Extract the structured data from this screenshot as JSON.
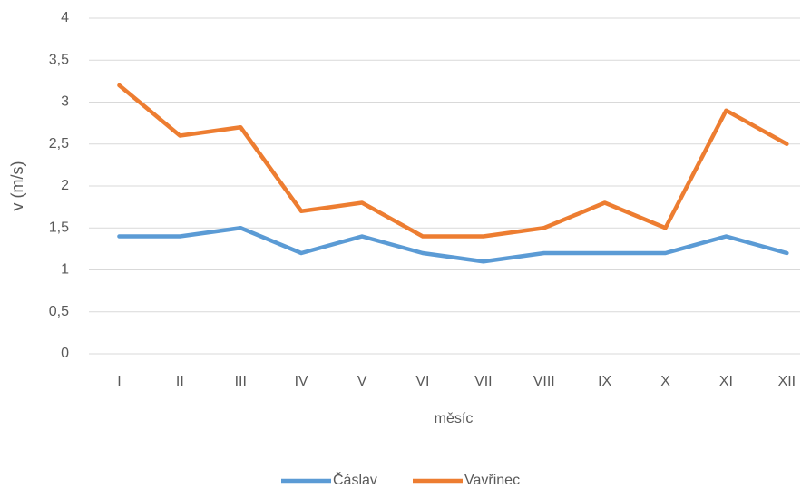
{
  "chart_data": {
    "type": "line",
    "x_label": "měsíc",
    "y_label": "v (m/s)",
    "categories": [
      "I",
      "II",
      "III",
      "IV",
      "V",
      "VI",
      "VII",
      "VIII",
      "IX",
      "X",
      "XI",
      "XII"
    ],
    "series": [
      {
        "name": "Čáslav",
        "color": "#5b9bd5",
        "values": [
          1.4,
          1.4,
          1.5,
          1.2,
          1.4,
          1.2,
          1.1,
          1.2,
          1.2,
          1.2,
          1.4,
          1.2
        ]
      },
      {
        "name": "Vavřinec",
        "color": "#ed7d31",
        "values": [
          3.2,
          2.6,
          2.7,
          1.7,
          1.8,
          1.4,
          1.4,
          1.5,
          1.8,
          1.5,
          2.9,
          2.5
        ]
      }
    ],
    "ylim": [
      0,
      4
    ],
    "yticks": [
      0,
      {
        "value": 0.5,
        "label": "0,5"
      },
      1,
      {
        "value": 1.5,
        "label": "1,5"
      },
      2,
      {
        "value": 2.5,
        "label": "2,5"
      },
      3,
      {
        "value": 3.5,
        "label": "3,5"
      },
      4
    ],
    "grid": true,
    "legend": "bottom"
  }
}
